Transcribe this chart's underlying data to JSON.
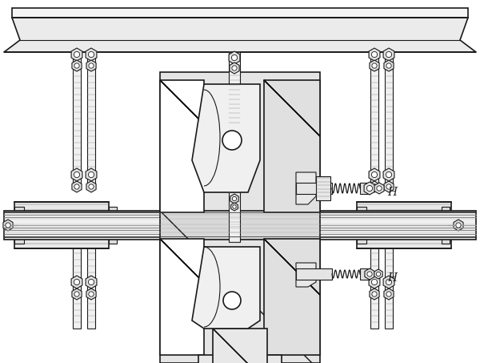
{
  "bg_color": "#ffffff",
  "lc": "#1a1a1a",
  "label_H1": "H",
  "label_H2": "H",
  "lfs": 10
}
